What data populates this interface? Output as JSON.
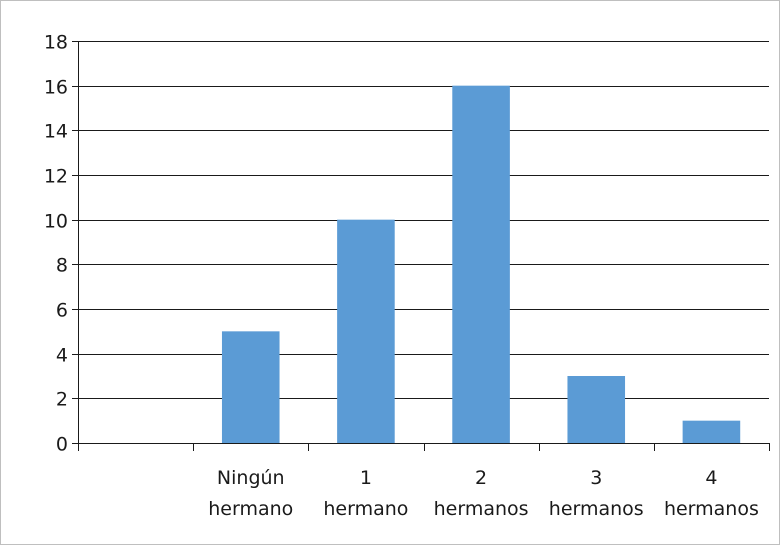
{
  "chart_data": {
    "type": "bar",
    "title": "",
    "xlabel": "",
    "ylabel": "",
    "categories": [
      {
        "lines": [
          "",
          ""
        ]
      },
      {
        "lines": [
          "Ningún",
          "hermano"
        ]
      },
      {
        "lines": [
          "1",
          "hermano"
        ]
      },
      {
        "lines": [
          "2",
          "hermanos"
        ]
      },
      {
        "lines": [
          "3",
          "hermanos"
        ]
      },
      {
        "lines": [
          "4",
          "hermanos"
        ]
      }
    ],
    "values": [
      0,
      5,
      10,
      16,
      3,
      1
    ],
    "ylim": [
      0,
      18
    ],
    "yticks": [
      "0",
      "2",
      "4",
      "6",
      "8",
      "10",
      "12",
      "14",
      "16",
      "18"
    ],
    "grid": true,
    "legend": "none",
    "colors": {
      "bar": "#5b9bd5",
      "grid": "#1a1a1a",
      "axis": "#1a1a1a"
    }
  }
}
